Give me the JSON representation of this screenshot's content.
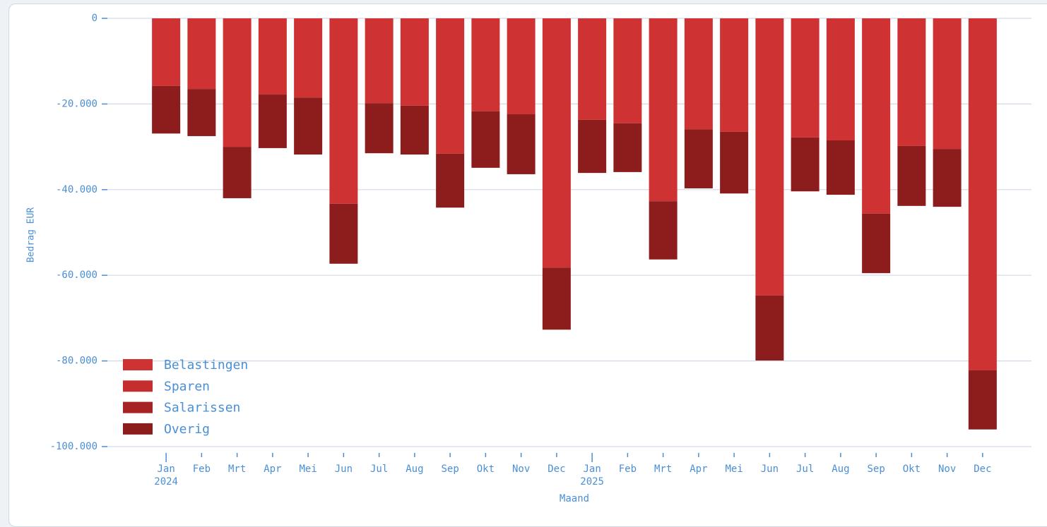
{
  "chart_data": {
    "type": "bar",
    "stacked": true,
    "y_label": "Bedrag EUR",
    "x_label": "Maand",
    "categories": [
      "Jan",
      "Feb",
      "Mrt",
      "Apr",
      "Mei",
      "Jun",
      "Jul",
      "Aug",
      "Sep",
      "Okt",
      "Nov",
      "Dec",
      "Jan",
      "Feb",
      "Mrt",
      "Apr",
      "Mei",
      "Jun",
      "Jul",
      "Aug",
      "Sep",
      "Okt",
      "Nov",
      "Dec"
    ],
    "years": [
      {
        "label": "2024",
        "index": 0
      },
      {
        "label": "2025",
        "index": 12
      }
    ],
    "series": [
      {
        "name": "Belastingen",
        "color": "#cf3232",
        "values": [
          -15800,
          -16500,
          -30000,
          -17800,
          -18500,
          -43300,
          -19800,
          -20400,
          -31600,
          -21700,
          -22400,
          -58200,
          -23700,
          -24500,
          -42700,
          -25900,
          -26500,
          -64700,
          -27800,
          -28500,
          -45600,
          -29800,
          -30500,
          -82200
        ]
      },
      {
        "name": "Sparen",
        "color": "#c52e2e",
        "values": [
          0,
          0,
          0,
          0,
          0,
          0,
          0,
          0,
          0,
          0,
          0,
          0,
          0,
          0,
          0,
          0,
          0,
          0,
          0,
          0,
          0,
          0,
          0,
          0
        ]
      },
      {
        "name": "Salarissen",
        "color": "#a52323",
        "values": [
          0,
          0,
          0,
          0,
          0,
          0,
          0,
          0,
          0,
          0,
          0,
          0,
          0,
          0,
          0,
          0,
          0,
          0,
          0,
          0,
          0,
          0,
          0,
          0
        ]
      },
      {
        "name": "Overig",
        "color": "#8d1c1c",
        "values": [
          -11100,
          -11000,
          -12000,
          -12500,
          -13300,
          -14000,
          -11700,
          -11400,
          -12600,
          -13200,
          -14000,
          -14500,
          -12400,
          -11400,
          -13600,
          -13800,
          -14400,
          -15200,
          -12600,
          -12700,
          -13900,
          -14000,
          -13500,
          -13800
        ]
      }
    ],
    "ylim": [
      -100000,
      0
    ],
    "yticks": [
      {
        "value": 0,
        "label": "0"
      },
      {
        "value": -20000,
        "label": "-20.000"
      },
      {
        "value": -40000,
        "label": "-40.000"
      },
      {
        "value": -60000,
        "label": "-60.000"
      },
      {
        "value": -80000,
        "label": "-80.000"
      },
      {
        "value": -100000,
        "label": "-100.000"
      }
    ],
    "grid": true,
    "legend": "lower left"
  }
}
